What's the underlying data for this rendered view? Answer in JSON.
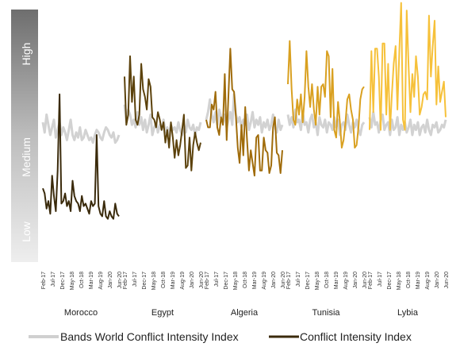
{
  "chart_data": {
    "type": "line",
    "y_band_labels": [
      "High",
      "Medium",
      "Low"
    ],
    "x_tick_labels": [
      "Feb-17",
      "Jul-17",
      "Dec-17",
      "May-18",
      "Oct-18",
      "Mar-19",
      "Aug-19",
      "Jan-20",
      "Jun-20"
    ],
    "country_labels": [
      "Morocco",
      "Egypt",
      "Algeria",
      "Tunisia",
      "Lybia"
    ],
    "legend": [
      {
        "label": "Bands World Conflict Intensity Index",
        "color": "#d0d0d0"
      },
      {
        "label": "Conflict Intensity Index",
        "color": "#3b2a0c"
      }
    ],
    "colors": {
      "band_dark": "#6e6e6e",
      "band_mid": "#bdbdbd",
      "band_light": "#eeeeee",
      "world_index": "#d2d2d2",
      "morocco": "#3a2a0b",
      "egypt": "#5c420c",
      "algeria": "#a06c0b",
      "tunisia": "#d9a020",
      "lybia": "#f6c13a"
    },
    "ylim": [
      0,
      10
    ],
    "series": [
      {
        "country": "Morocco",
        "world": [
          5.5,
          5.1,
          5.8,
          5.4,
          5.0,
          5.3,
          5.6,
          4.9,
          5.2,
          5.5,
          5.0,
          5.3,
          5.1,
          4.8,
          5.2,
          5.6,
          5.0,
          4.8,
          5.1,
          4.9,
          5.3,
          4.8,
          4.9,
          5.2,
          5.0,
          4.8,
          4.9,
          4.7,
          5.0,
          5.2,
          5.1,
          4.9,
          4.8,
          5.1,
          5.3,
          5.2,
          5.0,
          4.9,
          5.1,
          4.7,
          4.8,
          5.0
        ],
        "values": [
          2.9,
          2.7,
          2.1,
          2.4,
          1.9,
          3.4,
          2.6,
          2.0,
          3.6,
          6.6,
          2.3,
          2.4,
          2.7,
          2.2,
          2.4,
          2.0,
          3.2,
          2.6,
          2.4,
          2.3,
          2.0,
          2.6,
          2.2,
          2.3,
          2.1,
          1.9,
          2.4,
          2.2,
          2.3,
          5.0,
          2.2,
          1.9,
          1.8,
          2.4,
          1.8,
          1.7,
          2.0,
          1.8,
          1.7,
          2.3,
          1.9,
          1.8
        ]
      },
      {
        "country": "Egypt",
        "world": [
          6.2,
          5.5,
          6.0,
          5.8,
          5.4,
          5.6,
          5.3,
          5.9,
          5.4,
          5.7,
          5.2,
          5.6,
          5.1,
          5.4,
          5.8,
          5.0,
          5.3,
          5.5,
          5.1,
          5.4,
          5.2,
          5.6,
          5.1,
          5.3,
          5.0,
          5.4,
          5.2,
          5.3,
          5.1,
          5.5,
          5.2,
          5.0,
          5.4,
          5.1,
          5.6,
          5.3,
          5.2,
          5.4,
          5.0,
          5.3,
          5.2,
          5.5
        ],
        "values": [
          7.3,
          5.4,
          5.8,
          8.1,
          6.3,
          7.3,
          5.6,
          5.4,
          5.8,
          7.8,
          6.8,
          6.5,
          6.0,
          7.2,
          6.9,
          5.7,
          5.6,
          5.3,
          5.9,
          5.6,
          5.2,
          5.5,
          4.7,
          5.2,
          4.5,
          5.5,
          4.9,
          4.1,
          4.8,
          4.2,
          4.6,
          5.2,
          5.8,
          3.7,
          3.8,
          4.9,
          3.6,
          4.6,
          5.1,
          4.7,
          4.4,
          4.7
        ]
      },
      {
        "country": "Algeria",
        "world": [
          5.6,
          5.9,
          6.4,
          5.8,
          5.5,
          5.9,
          5.4,
          6.0,
          5.7,
          5.5,
          5.8,
          5.3,
          5.6,
          5.9,
          5.4,
          6.6,
          5.8,
          5.5,
          5.7,
          5.3,
          5.6,
          5.4,
          5.8,
          5.2,
          5.5,
          5.9,
          5.3,
          5.6,
          5.4,
          5.7,
          5.1,
          5.5,
          5.3,
          5.6,
          5.2,
          5.4,
          5.8,
          5.3,
          5.1,
          5.6,
          5.2,
          5.4
        ],
        "values": [
          5.6,
          5.3,
          5.3,
          6.2,
          6.0,
          6.7,
          5.3,
          5.0,
          5.7,
          5.4,
          7.4,
          4.8,
          6.6,
          8.4,
          6.8,
          6.7,
          5.7,
          4.5,
          3.9,
          5.4,
          4.2,
          6.1,
          4.8,
          3.6,
          4.4,
          3.9,
          3.4,
          4.9,
          5.0,
          3.6,
          3.6,
          4.9,
          4.4,
          4.3,
          3.5,
          3.8,
          5.3,
          5.7,
          4.3,
          4.2,
          3.5,
          4.4
        ]
      },
      {
        "country": "Tunisia",
        "world": [
          5.8,
          5.4,
          5.7,
          5.3,
          6.0,
          5.5,
          5.6,
          5.2,
          5.9,
          5.4,
          5.5,
          5.1,
          5.6,
          5.8,
          5.3,
          5.5,
          5.0,
          5.7,
          5.4,
          5.3,
          5.6,
          5.1,
          5.5,
          5.4,
          5.2,
          5.7,
          5.3,
          5.6,
          5.0,
          5.4,
          5.5,
          5.2,
          5.8,
          5.4,
          5.1,
          5.5,
          5.3,
          5.6,
          5.2,
          5.0,
          5.4,
          5.5
        ],
        "values": [
          7.0,
          8.7,
          6.8,
          5.6,
          5.4,
          6.4,
          5.8,
          6.6,
          5.5,
          6.5,
          8.3,
          6.9,
          6.1,
          7.0,
          6.0,
          5.4,
          6.9,
          5.8,
          6.9,
          7.0,
          6.5,
          8.3,
          8.1,
          5.7,
          7.6,
          5.2,
          4.9,
          6.3,
          5.5,
          4.5,
          4.8,
          5.5,
          6.4,
          6.6,
          6.0,
          5.6,
          4.5,
          4.6,
          5.3,
          6.4,
          6.8,
          6.9
        ]
      },
      {
        "country": "Lybia",
        "world": [
          5.7,
          5.3,
          5.9,
          5.4,
          5.5,
          5.1,
          5.6,
          5.8,
          5.2,
          5.4,
          5.5,
          5.0,
          5.6,
          5.2,
          5.3,
          5.7,
          5.0,
          5.4,
          5.2,
          5.5,
          5.1,
          5.3,
          5.6,
          5.0,
          5.4,
          5.2,
          5.5,
          5.0,
          5.3,
          5.4,
          5.1,
          5.6,
          5.2,
          5.0,
          5.4,
          5.3,
          5.5,
          5.1,
          5.2,
          5.4,
          5.3,
          5.6
        ],
        "values": [
          5.2,
          8.3,
          5.9,
          8.4,
          8.4,
          7.3,
          5.2,
          8.6,
          8.6,
          5.8,
          7.8,
          5.2,
          6.6,
          7.8,
          8.5,
          6.0,
          8.3,
          10.2,
          5.6,
          5.2,
          9.9,
          7.7,
          5.9,
          7.4,
          6.5,
          8.1,
          7.3,
          5.8,
          6.1,
          6.6,
          6.7,
          6.4,
          9.7,
          7.3,
          8.5,
          9.5,
          6.2,
          7.7,
          6.3,
          6.7,
          7.1,
          5.7
        ]
      }
    ]
  }
}
